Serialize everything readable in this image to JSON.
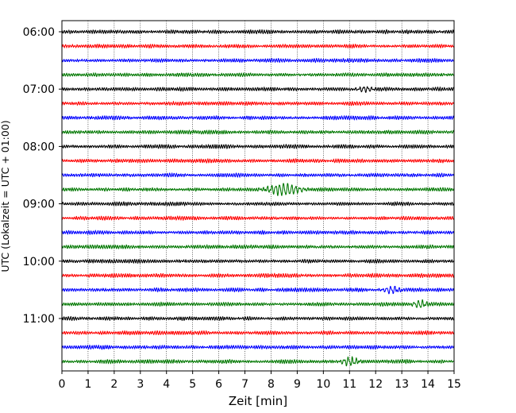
{
  "chart_data": {
    "type": "line",
    "title": "",
    "xlabel": "Zeit  [min]",
    "ylabel": "UTC (Lokalzeit = UTC + 01:00)",
    "xlim": [
      0,
      15
    ],
    "x_ticks": [
      "0",
      "1",
      "2",
      "3",
      "4",
      "5",
      "6",
      "7",
      "8",
      "9",
      "10",
      "11",
      "12",
      "13",
      "14",
      "15"
    ],
    "y_ticks": [
      {
        "label": "06:00",
        "trace": 0
      },
      {
        "label": "07:00",
        "trace": 4
      },
      {
        "label": "08:00",
        "trace": 8
      },
      {
        "label": "09:00",
        "trace": 12
      },
      {
        "label": "10:00",
        "trace": 16
      },
      {
        "label": "11:00",
        "trace": 20
      }
    ],
    "trace_count": 24,
    "trace_interval_minutes": 15,
    "first_trace_time": "06:00",
    "trace_colors": [
      "#000000",
      "#ff0000",
      "#0000ff",
      "#007700"
    ],
    "grid_x": true,
    "grid_style": "dotted",
    "bursts": [
      {
        "trace": 11,
        "center_min": 8.5,
        "width_min": 0.6,
        "gain": 3.2
      },
      {
        "trace": 23,
        "center_min": 11.0,
        "width_min": 0.3,
        "gain": 2.2
      },
      {
        "trace": 19,
        "center_min": 13.7,
        "width_min": 0.25,
        "gain": 2.0
      },
      {
        "trace": 18,
        "center_min": 12.6,
        "width_min": 0.3,
        "gain": 1.8
      },
      {
        "trace": 4,
        "center_min": 11.6,
        "width_min": 0.3,
        "gain": 1.5
      }
    ]
  }
}
